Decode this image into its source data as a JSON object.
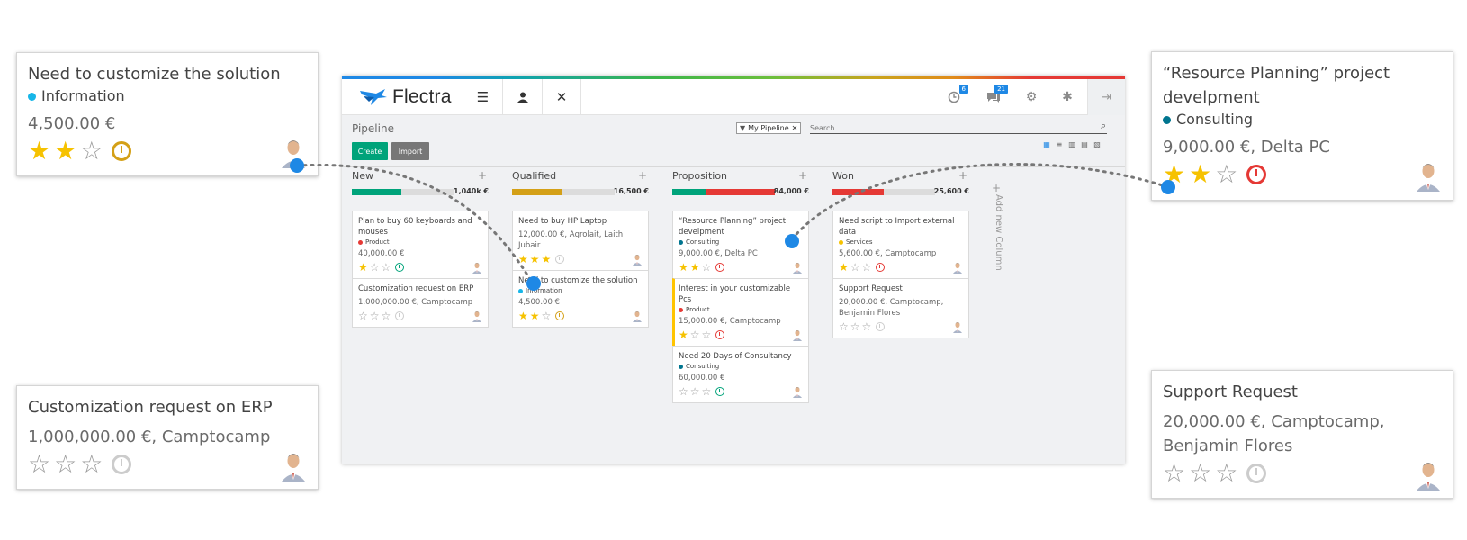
{
  "app": {
    "logo_text": "Flectra",
    "breadcrumb": "Pipeline",
    "create_label": "Create",
    "import_label": "Import",
    "filter_label": "My Pipeline",
    "search_placeholder": "Search...",
    "activity_badge": "6",
    "messages_badge": "21",
    "add_column_label": "Add new Column",
    "colors": {
      "accent": "#00a37a",
      "info": "#1e88e5"
    }
  },
  "columns": [
    {
      "name": "New",
      "total": "1,040k €",
      "progress": [
        {
          "color": "#00a37a",
          "fraction": 0.48
        }
      ],
      "cards": [
        {
          "title": "Plan to buy 60 keyboards and mouses",
          "tag": "Product",
          "tag_color": "#e53935",
          "amount": "40,000.00 €",
          "stars": 1,
          "clock": "#00a37a"
        },
        {
          "title": "Customization request on ERP",
          "tag": "",
          "tag_color": "",
          "amount": "1,000,000.00 €, Camptocamp",
          "stars": 0,
          "clock": "#cccccc"
        }
      ]
    },
    {
      "name": "Qualified",
      "total": "16,500 €",
      "progress": [
        {
          "color": "#d4a017",
          "fraction": 0.48
        }
      ],
      "cards": [
        {
          "title": "Need to buy HP Laptop",
          "tag": "",
          "tag_color": "",
          "amount": "12,000.00 €, Agrolait, Laith Jubair",
          "stars": 3,
          "clock": "#cccccc"
        },
        {
          "title": "Need to customize the solution",
          "tag": "Information",
          "tag_color": "#17b6e8",
          "amount": "4,500.00 €",
          "stars": 2,
          "clock": "#d4a017"
        }
      ]
    },
    {
      "name": "Proposition",
      "total": "84,000 €",
      "progress": [
        {
          "color": "#00a37a",
          "fraction": 0.33
        },
        {
          "color": "#e53935",
          "fraction": 0.67
        }
      ],
      "cards": [
        {
          "title": "“Resource Planning” project develpment",
          "tag": "Consulting",
          "tag_color": "#00758f",
          "amount": "9,000.00 €, Delta PC",
          "stars": 2,
          "clock": "#e53935"
        },
        {
          "title": "Interest in your customizable Pcs",
          "tag": "Product",
          "tag_color": "#e53935",
          "amount": "15,000.00 €, Camptocamp",
          "stars": 1,
          "clock": "#e53935",
          "highlight": true
        },
        {
          "title": "Need 20 Days of Consultancy",
          "tag": "Consulting",
          "tag_color": "#00758f",
          "amount": "60,000.00 €",
          "stars": 0,
          "clock": "#00a37a"
        }
      ]
    },
    {
      "name": "Won",
      "total": "25,600 €",
      "progress": [
        {
          "color": "#e53935",
          "fraction": 0.5
        }
      ],
      "cards": [
        {
          "title": "Need script to Import external data",
          "tag": "Services",
          "tag_color": "#f6c200",
          "amount": "5,600.00 €, Camptocamp",
          "stars": 1,
          "clock": "#e53935"
        },
        {
          "title": "Support Request",
          "tag": "",
          "tag_color": "",
          "amount": "20,000.00 €, Camptocamp, Benjamin Flores",
          "stars": 0,
          "clock": "#cccccc"
        }
      ]
    }
  ],
  "callouts": {
    "top_left": {
      "title": "Need to customize the solution",
      "tag": "Information",
      "tag_color": "#17b6e8",
      "amount": "4,500.00 €",
      "stars": 2,
      "clock": "#d4a017"
    },
    "bottom_left": {
      "title": "Customization request on ERP",
      "amount": "1,000,000.00 €, Camptocamp",
      "stars": 0,
      "clock": "#cccccc"
    },
    "top_right": {
      "title": "“Resource Planning” project develpment",
      "tag": "Consulting",
      "tag_color": "#00758f",
      "amount": "9,000.00 €, Delta PC",
      "stars": 2,
      "clock": "#e53935"
    },
    "bottom_right": {
      "title": "Support Request",
      "amount": "20,000.00 €, Camptocamp, Benjamin Flores",
      "stars": 0,
      "clock": "#cccccc"
    }
  }
}
